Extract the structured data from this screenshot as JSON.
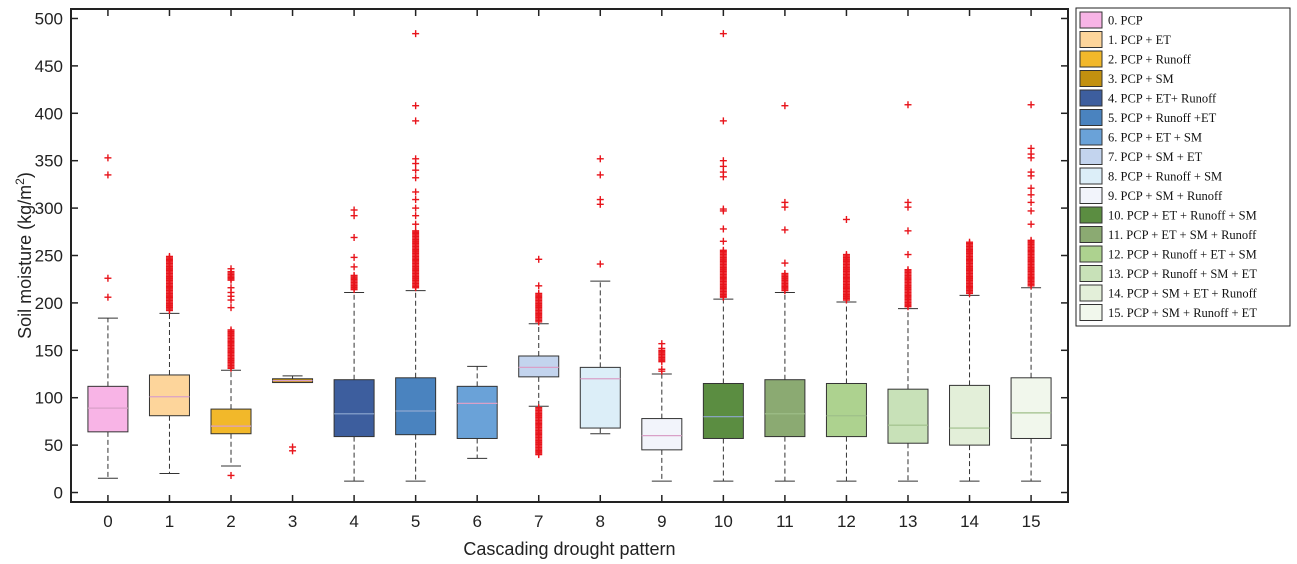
{
  "chart_data": {
    "type": "box",
    "xlabel": "Cascading drought pattern",
    "ylabel_main": "Soil moisture (kg/m",
    "ylabel_sup": "2",
    "ylabel_end": ")",
    "ylim": [
      -10,
      510
    ],
    "yticks": [
      0,
      50,
      100,
      150,
      200,
      250,
      300,
      350,
      400,
      450,
      500
    ],
    "xlim": [
      -0.6,
      15.6
    ],
    "categories": [
      "0",
      "1",
      "2",
      "3",
      "4",
      "5",
      "6",
      "7",
      "8",
      "9",
      "10",
      "11",
      "12",
      "13",
      "14",
      "15"
    ],
    "legend_position": "outside-right",
    "outlier_color": "#e8141b",
    "series": [
      {
        "x": 0,
        "legend": "0. PCP",
        "color": "#f8b4e6",
        "q1": 64,
        "median": 89,
        "q3": 112,
        "whisker_low": 15,
        "whisker_high": 184,
        "outliers": [
          206,
          226,
          335,
          353
        ]
      },
      {
        "x": 1,
        "legend": "1. PCP + ET",
        "color": "#fdd59b",
        "q1": 81,
        "median": 101,
        "q3": 124,
        "whisker_low": 20,
        "whisker_high": 189,
        "outlier_range": [
          192,
          249
        ]
      },
      {
        "x": 2,
        "legend": "2. PCP + Runoff",
        "color": "#f2b82a",
        "q1": 62,
        "median": 70,
        "q3": 88,
        "whisker_low": 28,
        "whisker_high": 129,
        "outliers": [
          18,
          195,
          203,
          207,
          211,
          216,
          236
        ],
        "outlier_range": [
          131,
          172
        ],
        "outlier_range_2": [
          224,
          233
        ]
      },
      {
        "x": 3,
        "legend": "3. PCP + SM",
        "color": "#c2900f",
        "q1": 116,
        "median": 118,
        "q3": 120,
        "whisker_low": 116,
        "whisker_high": 123,
        "outliers": [
          44,
          48
        ]
      },
      {
        "x": 4,
        "legend": "4. PCP + ET+ Runoff",
        "color": "#3d5e9e",
        "q1": 59,
        "median": 83,
        "q3": 119,
        "whisker_low": 12,
        "whisker_high": 211,
        "outliers": [
          238,
          248,
          269,
          292,
          298
        ],
        "outlier_range": [
          214,
          230
        ]
      },
      {
        "x": 5,
        "legend": "5. PCP + Runoff +ET",
        "color": "#4a83bf",
        "q1": 61,
        "median": 86,
        "q3": 121,
        "whisker_low": 12,
        "whisker_high": 213,
        "outliers": [
          283,
          292,
          300,
          309,
          317,
          332,
          340,
          347,
          352,
          392,
          408,
          484
        ],
        "outlier_range": [
          216,
          276
        ]
      },
      {
        "x": 6,
        "legend": "6. PCP + ET + SM",
        "color": "#6aa2d8",
        "q1": 57,
        "median": 94,
        "q3": 112,
        "whisker_low": 36,
        "whisker_high": 133,
        "outliers": []
      },
      {
        "x": 7,
        "legend": "7. PCP + SM + ET",
        "color": "#c3d4ee",
        "q1": 122,
        "median": 132,
        "q3": 144,
        "whisker_low": 91,
        "whisker_high": 178,
        "outliers": [
          218,
          246
        ],
        "outlier_range": [
          40,
          90
        ],
        "outlier_range_2": [
          180,
          210
        ]
      },
      {
        "x": 8,
        "legend": "8. PCP + Runoff + SM",
        "color": "#dceef8",
        "q1": 68,
        "median": 120,
        "q3": 132,
        "whisker_low": 62,
        "whisker_high": 223,
        "outliers": [
          241,
          304,
          309,
          335,
          352
        ]
      },
      {
        "x": 9,
        "legend": "9. PCP + SM + Runoff",
        "color": "#f2f4fb",
        "q1": 45,
        "median": 60,
        "q3": 78,
        "whisker_low": 12,
        "whisker_high": 125,
        "outliers": [
          128,
          130,
          152,
          157
        ],
        "outlier_range": [
          138,
          150
        ]
      },
      {
        "x": 10,
        "legend": "10. PCP + ET + Runoff + SM",
        "color": "#5b8d41",
        "q1": 57,
        "median": 80,
        "q3": 115,
        "whisker_low": 12,
        "whisker_high": 204,
        "outliers": [
          265,
          278,
          297,
          299,
          333,
          338,
          344,
          350,
          392,
          484
        ],
        "outlier_range": [
          206,
          256
        ]
      },
      {
        "x": 11,
        "legend": "11. PCP + ET + SM + Runoff",
        "color": "#8baa72",
        "q1": 59,
        "median": 83,
        "q3": 119,
        "whisker_low": 12,
        "whisker_high": 211,
        "outliers": [
          242,
          277,
          301,
          306,
          408
        ],
        "outlier_range": [
          213,
          232
        ]
      },
      {
        "x": 12,
        "legend": "12. PCP + Runoff + ET + SM",
        "color": "#add28f",
        "q1": 59,
        "median": 81,
        "q3": 115,
        "whisker_low": 12,
        "whisker_high": 201,
        "outliers": [
          288
        ],
        "outlier_range": [
          203,
          252
        ]
      },
      {
        "x": 13,
        "legend": "13. PCP + Runoff + SM + ET",
        "color": "#c8e1b8",
        "q1": 52,
        "median": 71,
        "q3": 109,
        "whisker_low": 12,
        "whisker_high": 194,
        "outliers": [
          251,
          276,
          301,
          306,
          409
        ],
        "outlier_range": [
          196,
          236
        ]
      },
      {
        "x": 14,
        "legend": "14. PCP + SM + ET + Runoff",
        "color": "#e3efd9",
        "q1": 50,
        "median": 68,
        "q3": 113,
        "whisker_low": 12,
        "whisker_high": 208,
        "outliers": [],
        "outlier_range": [
          210,
          264
        ]
      },
      {
        "x": 15,
        "legend": "15. PCP + SM + Runoff + ET",
        "color": "#f1f7ec",
        "q1": 57,
        "median": 84,
        "q3": 121,
        "whisker_low": 12,
        "whisker_high": 216,
        "outliers": [
          283,
          297,
          306,
          314,
          321,
          334,
          338,
          353,
          357,
          363,
          409
        ],
        "outlier_range": [
          218,
          266
        ]
      }
    ]
  }
}
